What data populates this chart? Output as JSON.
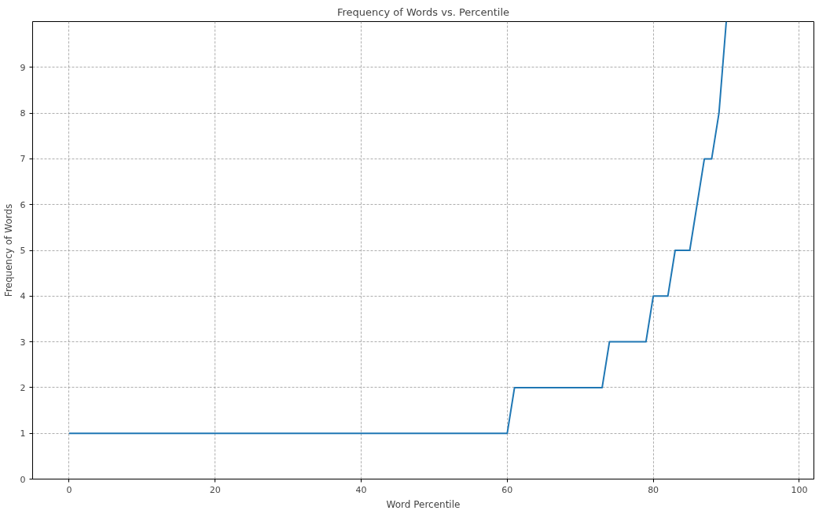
{
  "chart_data": {
    "type": "line",
    "title": "Frequency of Words vs. Percentile",
    "xlabel": "Word Percentile",
    "ylabel": "Frequency of Words",
    "x": [
      0,
      60,
      61,
      73,
      74,
      79,
      80,
      82,
      83,
      85,
      87,
      88,
      89,
      90
    ],
    "series": [
      {
        "color": "#1f77b4",
        "values": [
          1,
          1,
          2,
          2,
          3,
          3,
          4,
          4,
          5,
          5,
          7,
          7,
          8,
          10
        ]
      }
    ],
    "xlim": [
      -5,
      102
    ],
    "ylim": [
      0,
      10
    ],
    "xticks": [
      0,
      20,
      40,
      60,
      80,
      100
    ],
    "yticks": [
      0,
      1,
      2,
      3,
      4,
      5,
      6,
      7,
      8,
      9
    ],
    "grid": true,
    "line_style": "solid"
  }
}
